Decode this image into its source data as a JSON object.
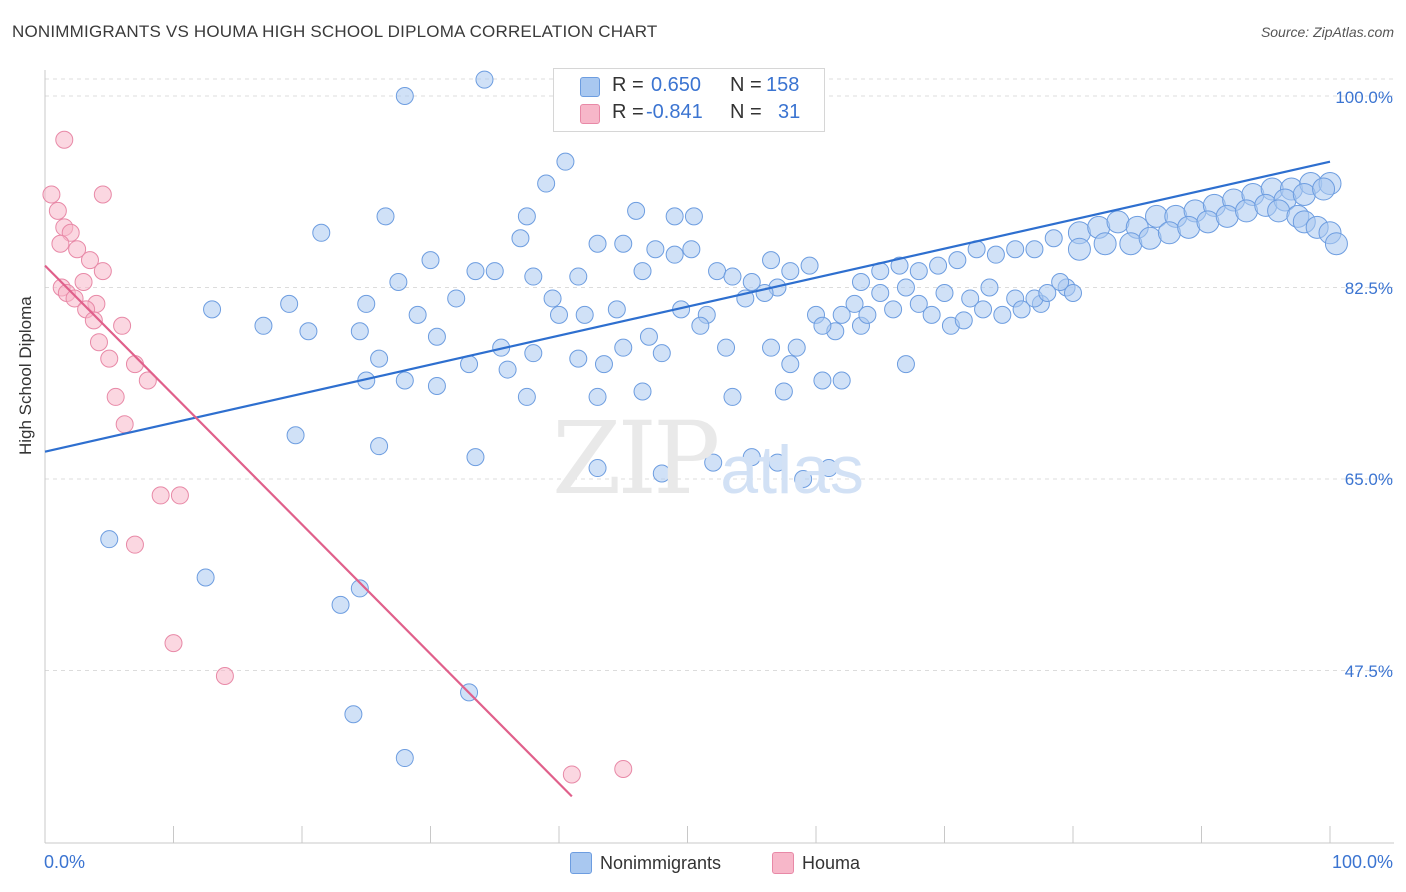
{
  "header": {
    "title": "NONIMMIGRANTS VS HOUMA HIGH SCHOOL DIPLOMA CORRELATION CHART",
    "source": "Source: ZipAtlas.com"
  },
  "watermark": {
    "part1": "ZIP",
    "part2": "atlas"
  },
  "legend": {
    "rows": [
      {
        "r_label": "R =",
        "r_value": "0.650",
        "n_label": "N =",
        "n_value": "158"
      },
      {
        "r_label": "R =",
        "r_value": "-0.841",
        "n_label": "N =",
        "n_value": "31"
      }
    ]
  },
  "bottom_legend": {
    "series1": "Nonimmigrants",
    "series2": "Houma"
  },
  "colors": {
    "blue_fill": "#a9c8f0",
    "blue_stroke": "#6d9de0",
    "blue_line": "#2e6fcf",
    "pink_fill": "#f7b7c9",
    "pink_stroke": "#e889a7",
    "pink_line": "#e0608b",
    "grid": "#dcdcdc",
    "tick_text": "#3b74d1"
  },
  "chart_data": {
    "type": "scatter",
    "title": "NONIMMIGRANTS VS HOUMA HIGH SCHOOL DIPLOMA CORRELATION CHART",
    "xlabel": "",
    "ylabel": "High School Diploma",
    "xlim": [
      0,
      100
    ],
    "ylim": [
      36,
      102
    ],
    "x_tick_labels": [
      "0.0%",
      "100.0%"
    ],
    "y_ticks": [
      47.5,
      65.0,
      82.5,
      100.0
    ],
    "y_tick_labels": [
      "47.5%",
      "65.0%",
      "82.5%",
      "100.0%"
    ],
    "grid": true,
    "legend_position": "top-center",
    "series": [
      {
        "name": "Nonimmigrants",
        "color": "#a9c8f0",
        "R": 0.65,
        "N": 158,
        "trend": {
          "x": [
            0,
            100
          ],
          "y": [
            67.5,
            94.0
          ]
        },
        "points": [
          [
            34.2,
            101.5
          ],
          [
            28,
            100
          ],
          [
            40.5,
            94
          ],
          [
            39,
            92
          ],
          [
            37.5,
            89
          ],
          [
            26.5,
            89
          ],
          [
            37,
            87
          ],
          [
            46,
            89.5
          ],
          [
            49,
            89
          ],
          [
            50.5,
            89
          ],
          [
            21.5,
            87.5
          ],
          [
            43,
            86.5
          ],
          [
            45,
            86.5
          ],
          [
            47.5,
            86
          ],
          [
            50.3,
            86
          ],
          [
            49,
            85.5
          ],
          [
            30,
            85
          ],
          [
            33.5,
            84
          ],
          [
            35,
            84
          ],
          [
            38,
            83.5
          ],
          [
            27.5,
            83
          ],
          [
            41.5,
            83.5
          ],
          [
            46.5,
            84
          ],
          [
            52.3,
            84
          ],
          [
            53.5,
            83.5
          ],
          [
            56.5,
            85
          ],
          [
            58,
            84
          ],
          [
            59.5,
            84.5
          ],
          [
            55,
            83
          ],
          [
            57,
            82.5
          ],
          [
            19,
            81
          ],
          [
            25,
            81
          ],
          [
            32,
            81.5
          ],
          [
            29,
            80
          ],
          [
            39.5,
            81.5
          ],
          [
            40,
            80
          ],
          [
            42,
            80
          ],
          [
            44.5,
            80.5
          ],
          [
            49.5,
            80.5
          ],
          [
            51.5,
            80
          ],
          [
            54.5,
            81.5
          ],
          [
            56,
            82
          ],
          [
            60,
            80
          ],
          [
            62,
            80
          ],
          [
            63,
            81
          ],
          [
            65,
            82
          ],
          [
            67,
            82.5
          ],
          [
            63.5,
            79
          ],
          [
            61.5,
            78.5
          ],
          [
            58.5,
            77
          ],
          [
            13,
            80.5
          ],
          [
            17,
            79
          ],
          [
            24.5,
            78.5
          ],
          [
            30.5,
            78
          ],
          [
            35.5,
            77
          ],
          [
            38,
            76.5
          ],
          [
            41.5,
            76
          ],
          [
            45,
            77
          ],
          [
            47,
            78
          ],
          [
            51,
            79
          ],
          [
            60.5,
            79
          ],
          [
            64,
            80
          ],
          [
            66,
            80.5
          ],
          [
            68,
            81
          ],
          [
            70,
            82
          ],
          [
            72,
            81.5
          ],
          [
            73.5,
            82.5
          ],
          [
            75.5,
            81.5
          ],
          [
            77.5,
            81
          ],
          [
            79.5,
            82.5
          ],
          [
            20.5,
            78.5
          ],
          [
            26,
            76
          ],
          [
            33,
            75.5
          ],
          [
            36,
            75
          ],
          [
            43.5,
            75.5
          ],
          [
            48,
            76.5
          ],
          [
            53,
            77
          ],
          [
            56.5,
            77
          ],
          [
            58,
            75.5
          ],
          [
            60.5,
            74
          ],
          [
            25,
            74
          ],
          [
            28,
            74
          ],
          [
            30.5,
            73.5
          ],
          [
            37.5,
            72.5
          ],
          [
            43,
            72.5
          ],
          [
            46.5,
            73
          ],
          [
            53.5,
            72.5
          ],
          [
            57.5,
            73
          ],
          [
            62,
            74
          ],
          [
            67,
            75.5
          ],
          [
            19.5,
            69
          ],
          [
            26,
            68
          ],
          [
            33.5,
            67
          ],
          [
            43,
            66
          ],
          [
            48,
            65.5
          ],
          [
            52,
            66.5
          ],
          [
            55,
            67
          ],
          [
            57,
            66.5
          ],
          [
            59,
            65
          ],
          [
            61,
            66
          ],
          [
            69,
            80
          ],
          [
            70.5,
            79
          ],
          [
            71.5,
            79.5
          ],
          [
            73,
            80.5
          ],
          [
            74.5,
            80
          ],
          [
            76,
            80.5
          ],
          [
            77,
            81.5
          ],
          [
            78,
            82
          ],
          [
            79,
            83
          ],
          [
            80,
            82
          ],
          [
            63.5,
            83
          ],
          [
            65,
            84
          ],
          [
            66.5,
            84.5
          ],
          [
            68,
            84
          ],
          [
            69.5,
            84.5
          ],
          [
            71,
            85
          ],
          [
            72.5,
            86
          ],
          [
            74,
            85.5
          ],
          [
            75.5,
            86
          ],
          [
            77,
            86
          ],
          [
            78.5,
            87
          ],
          [
            80.5,
            87.5
          ],
          [
            82,
            88
          ],
          [
            83.5,
            88.5
          ],
          [
            85,
            88
          ],
          [
            86.5,
            89
          ],
          [
            88,
            89
          ],
          [
            89.5,
            89.5
          ],
          [
            91,
            90
          ],
          [
            92.5,
            90.5
          ],
          [
            94,
            91
          ],
          [
            95.5,
            91.5
          ],
          [
            97,
            91.5
          ],
          [
            98.5,
            92
          ],
          [
            100,
            92
          ],
          [
            80.5,
            86
          ],
          [
            82.5,
            86.5
          ],
          [
            84.5,
            86.5
          ],
          [
            86,
            87
          ],
          [
            87.5,
            87.5
          ],
          [
            89,
            88
          ],
          [
            90.5,
            88.5
          ],
          [
            92,
            89
          ],
          [
            93.5,
            89.5
          ],
          [
            95,
            90
          ],
          [
            96.5,
            90.5
          ],
          [
            98,
            91
          ],
          [
            99.5,
            91.5
          ],
          [
            96,
            89.5
          ],
          [
            97.5,
            89
          ],
          [
            98,
            88.5
          ],
          [
            99,
            88
          ],
          [
            100,
            87.5
          ],
          [
            100.5,
            86.5
          ],
          [
            5,
            59.5
          ],
          [
            12.5,
            56
          ],
          [
            23,
            53.5
          ],
          [
            24.5,
            55
          ],
          [
            33,
            45.5
          ],
          [
            24,
            43.5
          ],
          [
            28,
            39.5
          ]
        ]
      },
      {
        "name": "Houma",
        "color": "#f7b7c9",
        "R": -0.841,
        "N": 31,
        "trend": {
          "x": [
            0,
            41
          ],
          "y": [
            84.5,
            36
          ]
        },
        "points": [
          [
            0.5,
            91
          ],
          [
            1,
            89.5
          ],
          [
            1.5,
            88
          ],
          [
            2,
            87.5
          ],
          [
            1.2,
            86.5
          ],
          [
            2.5,
            86
          ],
          [
            3.5,
            85
          ],
          [
            4.5,
            84
          ],
          [
            3,
            83
          ],
          [
            1.3,
            82.5
          ],
          [
            1.7,
            82
          ],
          [
            2.3,
            81.5
          ],
          [
            4,
            81
          ],
          [
            3.2,
            80.5
          ],
          [
            3.8,
            79.5
          ],
          [
            6,
            79
          ],
          [
            4.2,
            77.5
          ],
          [
            5,
            76
          ],
          [
            7,
            75.5
          ],
          [
            8,
            74
          ],
          [
            5.5,
            72.5
          ],
          [
            6.2,
            70
          ],
          [
            9,
            63.5
          ],
          [
            10.5,
            63.5
          ],
          [
            1.5,
            96
          ],
          [
            4.5,
            91
          ],
          [
            7,
            59
          ],
          [
            10,
            50
          ],
          [
            14,
            47
          ],
          [
            41,
            38
          ],
          [
            45,
            38.5
          ]
        ]
      }
    ]
  }
}
